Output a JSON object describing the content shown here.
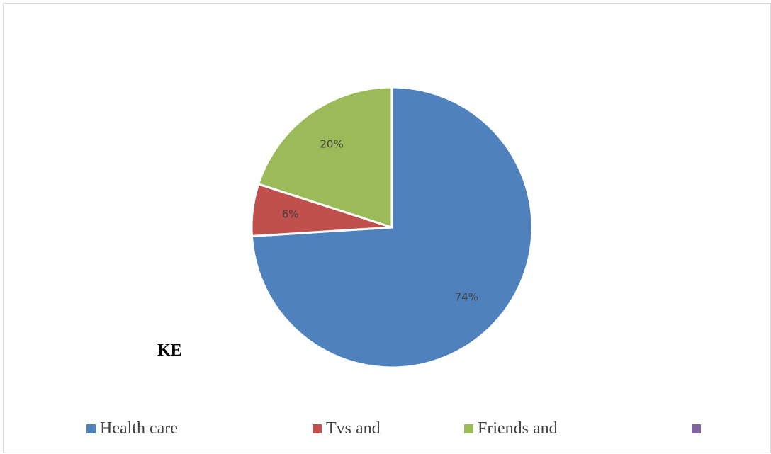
{
  "chart_data": {
    "type": "pie",
    "categories": [
      "Health care",
      "Tvs and",
      "Friends and",
      ""
    ],
    "values": [
      74,
      6,
      20,
      0
    ],
    "data_labels": [
      "74%",
      "6%",
      "20%",
      ""
    ],
    "colors": [
      "#4f81bd",
      "#c0504d",
      "#9bbb59",
      "#8064a2"
    ],
    "start_angle_deg": 0,
    "direction": "clockwise",
    "legend_position": "bottom"
  },
  "side_label": "KE"
}
